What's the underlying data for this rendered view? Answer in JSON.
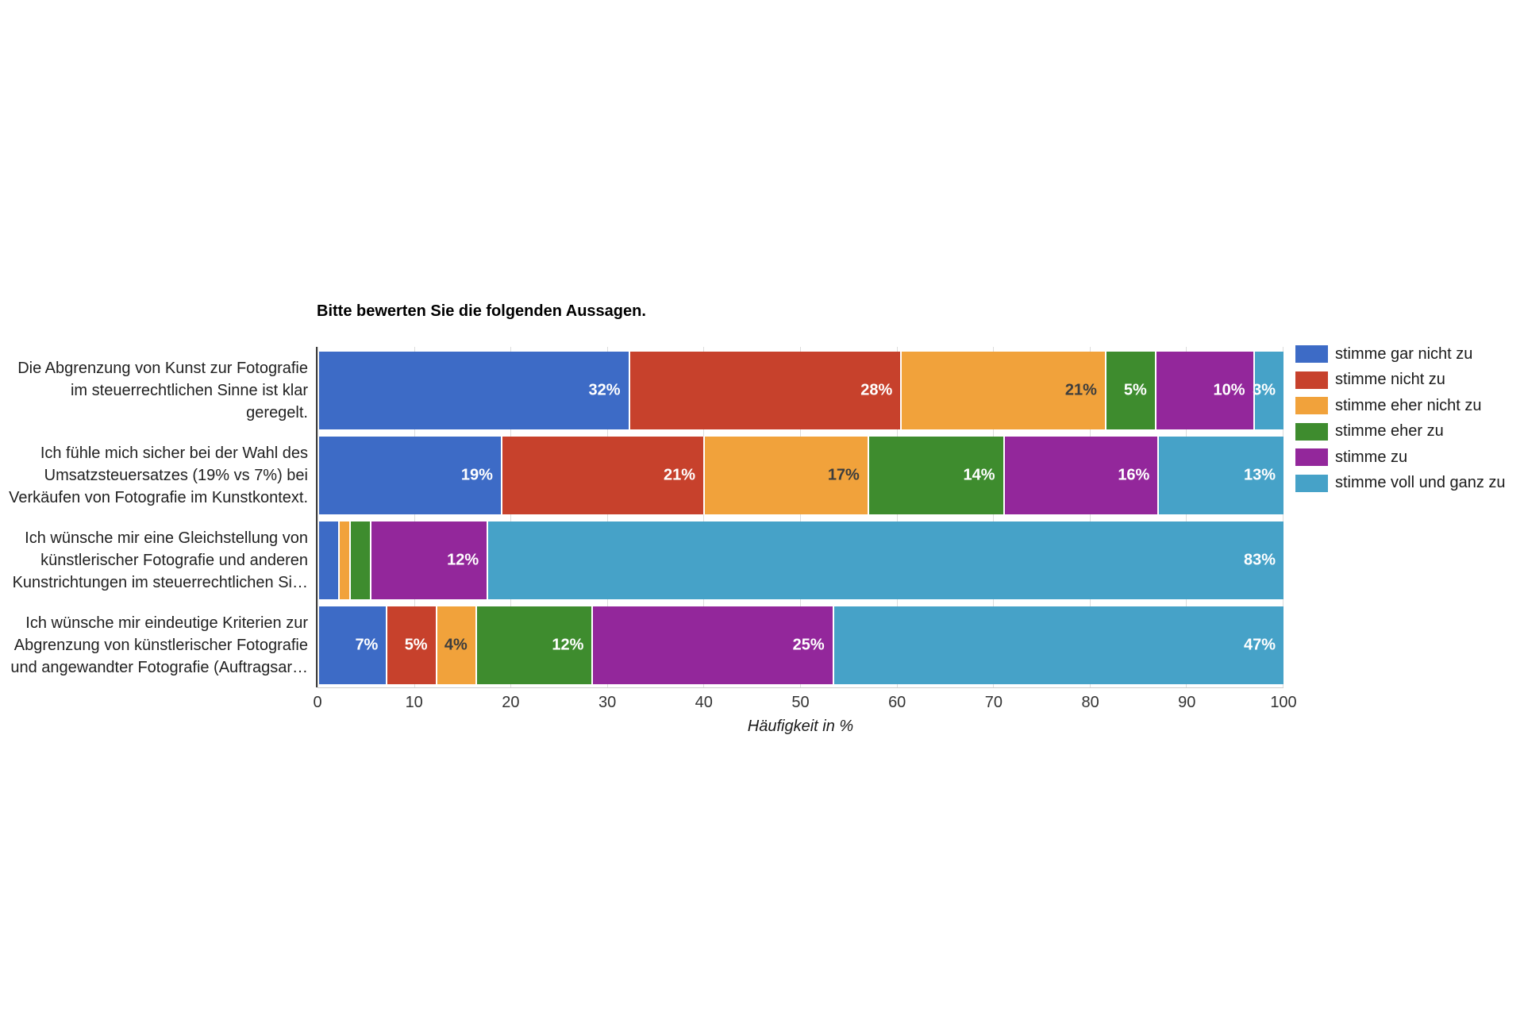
{
  "chart_data": {
    "type": "bar",
    "orientation": "horizontal_stacked",
    "title": "Bitte bewerten Sie die folgenden Aussagen.",
    "xlabel": "Häufigkeit in %",
    "xlim": [
      0,
      100
    ],
    "x_ticks": [
      "0",
      "10",
      "20",
      "30",
      "40",
      "50",
      "60",
      "70",
      "80",
      "90",
      "100"
    ],
    "grid": true,
    "legend_position": "right",
    "value_suffix": "%",
    "categories": [
      "Die Abgrenzung von Kunst zur Fotografie im steuerrechtlichen Sinne ist klar geregelt.",
      "Ich fühle mich sicher bei der Wahl des Umsatzsteuersatzes (19% vs 7%) bei Verkäufen von Fotografie im Kunstkontext.",
      "Ich wünsche mir eine Gleichstellung von künstlerischer Fotografie und anderen Kunstrichtungen im steuerrechtlichen Si…",
      "Ich wünsche mir eindeutige Kriterien zur Abgrenzung von künstlerischer Fotografie und angewandter Fotografie (Auftragsar…"
    ],
    "category_label_lines": [
      [
        "Die Abgrenzung von Kunst zur Fotografie",
        "im steuerrechtlichen Sinne ist klar",
        "geregelt."
      ],
      [
        "Ich fühle mich sicher bei der Wahl des",
        "Umsatzsteuersatzes (19% vs 7%) bei",
        "Verkäufen von Fotografie im Kunstkontext."
      ],
      [
        "Ich wünsche mir eine Gleichstellung von",
        "künstlerischer Fotografie und anderen",
        "Kunstrichtungen im steuerrechtlichen Si…"
      ],
      [
        "Ich wünsche mir eindeutige Kriterien zur",
        "Abgrenzung von künstlerischer Fotografie",
        "und angewandter Fotografie (Auftragsar…"
      ]
    ],
    "series": [
      {
        "name": "stimme gar nicht zu",
        "color": "#3D6BC6",
        "label_color": "#ffffff",
        "values": [
          32,
          19,
          2,
          7
        ]
      },
      {
        "name": "stimme nicht zu",
        "color": "#C7412C",
        "label_color": "#ffffff",
        "values": [
          28,
          21,
          0,
          5
        ]
      },
      {
        "name": "stimme eher nicht zu",
        "color": "#F1A23B",
        "label_color": "#3d3d3d",
        "values": [
          21,
          17,
          1,
          4
        ]
      },
      {
        "name": "stimme eher zu",
        "color": "#3E8C2E",
        "label_color": "#ffffff",
        "values": [
          5,
          14,
          2,
          12
        ]
      },
      {
        "name": "stimme zu",
        "color": "#93279B",
        "label_color": "#ffffff",
        "values": [
          10,
          16,
          12,
          25
        ]
      },
      {
        "name": "stimme voll und ganz zu",
        "color": "#46A2C8",
        "label_color": "#ffffff",
        "values": [
          3,
          13,
          83,
          47
        ]
      }
    ],
    "displayed_value_labels": [
      [
        "32%",
        "28%",
        "21%",
        "5%",
        "10%",
        "3%"
      ],
      [
        "19%",
        "21%",
        "17%",
        "14%",
        "16%",
        "13%"
      ],
      [
        "",
        "",
        "",
        "",
        "12%",
        "83%"
      ],
      [
        "7%",
        "5%",
        "4%",
        "12%",
        "25%",
        "47%"
      ]
    ]
  }
}
